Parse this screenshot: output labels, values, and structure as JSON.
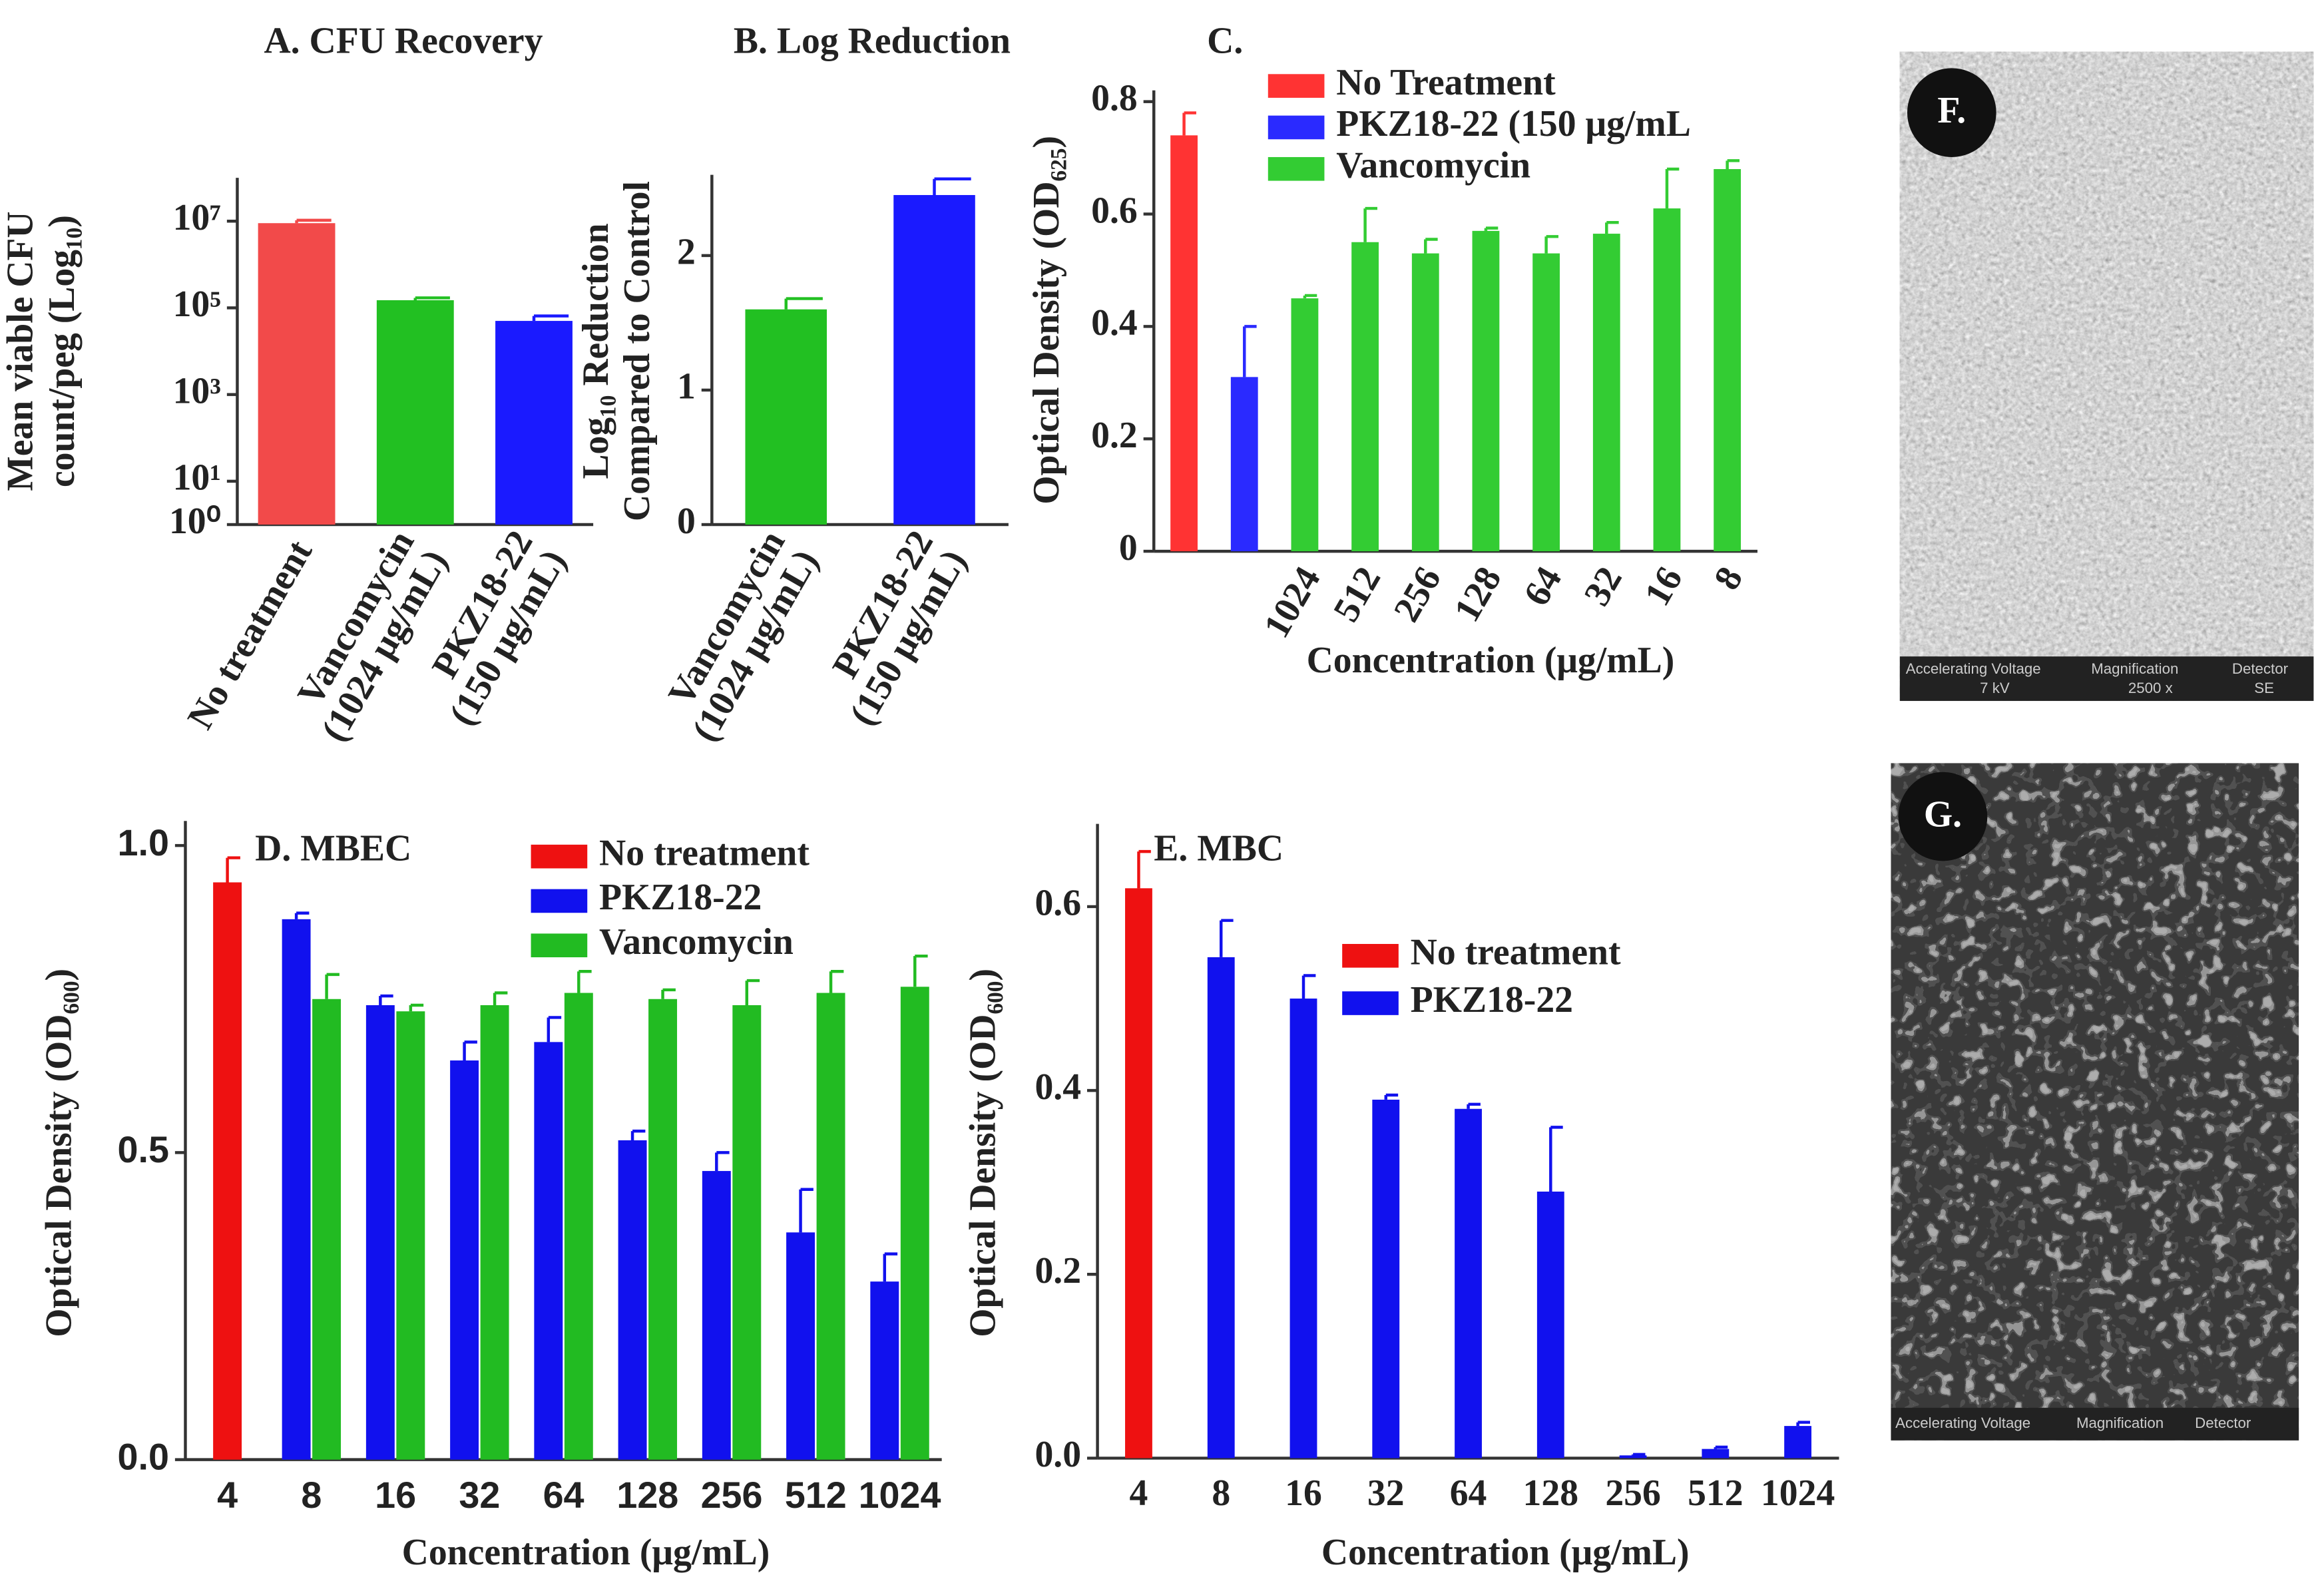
{
  "chart_data": [
    {
      "type": "bar",
      "title": "A. CFU Recovery",
      "ylabel": [
        "Mean viable CFU",
        "count/peg (Log₁₀)"
      ],
      "categories": [
        [
          "No treatment"
        ],
        [
          "Vancomycin",
          "(1024 μg/mL)"
        ],
        [
          "PKZ18-22",
          "(150 μg/mL)"
        ]
      ],
      "values": [
        9000000,
        150000,
        50000
      ],
      "errors": [
        1500000,
        20000,
        15000
      ],
      "colors": [
        "#f24a4a",
        "#22c022",
        "#1a1aff"
      ],
      "log_scale": true,
      "ylim": [
        1,
        100000000
      ],
      "yticks": [
        {
          "value": 1,
          "label": "10⁰"
        },
        {
          "value": 10,
          "label": "10¹"
        },
        {
          "value": 1000,
          "label": "10³"
        },
        {
          "value": 100000,
          "label": "10⁵"
        },
        {
          "value": 10000000,
          "label": "10⁷"
        }
      ]
    },
    {
      "type": "bar",
      "title": "B. Log Reduction",
      "ylabel": [
        "Log₁₀ Reduction",
        "Compared to Control"
      ],
      "categories": [
        [
          "Vancomycin",
          "(1024 μg/mL)"
        ],
        [
          "PKZ18-22",
          "(150 μg/mL)"
        ]
      ],
      "values": [
        1.6,
        2.45
      ],
      "errors": [
        0.08,
        0.12
      ],
      "colors": [
        "#22c022",
        "#1a1aff"
      ],
      "ylim": [
        0,
        2.6
      ],
      "yticks": [
        0,
        1,
        2
      ]
    },
    {
      "type": "bar",
      "title": "C.",
      "ylabel": [
        "Optical Density (OD₆₂₅)"
      ],
      "xlabel": "Concentration (μg/mL)",
      "categories": [
        null,
        null,
        "1024",
        "512",
        "256",
        "128",
        "64",
        "32",
        "16",
        "8"
      ],
      "series": [
        {
          "name": "No Treatment",
          "color": "#ff3333",
          "values": [
            0.74,
            null,
            null,
            null,
            null,
            null,
            null,
            null,
            null,
            null
          ],
          "errors": [
            0.04,
            null,
            null,
            null,
            null,
            null,
            null,
            null,
            null,
            null
          ]
        },
        {
          "name": "PKZ18-22 (150 μg/mL",
          "color": "#2a2aff",
          "values": [
            null,
            0.31,
            null,
            null,
            null,
            null,
            null,
            null,
            null,
            null
          ],
          "errors": [
            null,
            0.09,
            null,
            null,
            null,
            null,
            null,
            null,
            null,
            null
          ]
        },
        {
          "name": "Vancomycin",
          "color": "#33cc33",
          "values": [
            null,
            null,
            0.45,
            0.55,
            0.53,
            0.57,
            0.53,
            0.565,
            0.61,
            0.68
          ],
          "errors": [
            null,
            null,
            0.005,
            0.06,
            0.025,
            0.005,
            0.03,
            0.02,
            0.07,
            0.015
          ]
        }
      ],
      "ylim": [
        0,
        0.82
      ],
      "yticks": [
        0,
        0.2,
        0.4,
        0.6,
        0.8
      ]
    },
    {
      "type": "bar",
      "title": "D. MBEC",
      "ylabel": [
        "Optical Density (OD₆₀₀)"
      ],
      "xlabel": "Concentration (μg/mL)",
      "categories": [
        "4",
        "8",
        "16",
        "32",
        "64",
        "128",
        "256",
        "512",
        "1024"
      ],
      "series": [
        {
          "name": "No treatment",
          "color": "#ee1111",
          "values": [
            0.94,
            null,
            null,
            null,
            null,
            null,
            null,
            null,
            null
          ],
          "errors": [
            0.04,
            null,
            null,
            null,
            null,
            null,
            null,
            null,
            null
          ]
        },
        {
          "name": "PKZ18-22",
          "color": "#1111ee",
          "values": [
            null,
            0.88,
            0.74,
            0.65,
            0.68,
            0.52,
            0.47,
            0.37,
            0.29
          ],
          "errors": [
            null,
            0.01,
            0.015,
            0.03,
            0.04,
            0.015,
            0.03,
            0.07,
            0.045
          ]
        },
        {
          "name": "Vancomycin",
          "color": "#22bb22",
          "values": [
            null,
            0.75,
            0.73,
            0.74,
            0.76,
            0.75,
            0.74,
            0.76,
            0.77
          ],
          "errors": [
            null,
            0.04,
            0.01,
            0.02,
            0.035,
            0.015,
            0.04,
            0.035,
            0.05
          ]
        }
      ],
      "ylim": [
        0,
        1.04
      ],
      "yticks": [
        {
          "value": 0,
          "label": "0.0"
        },
        0.5,
        {
          "value": 1,
          "label": "1.0"
        }
      ]
    },
    {
      "type": "bar",
      "title": "E. MBC",
      "ylabel": [
        "Optical Density (OD₆₀₀)"
      ],
      "xlabel": "Concentration (μg/mL)",
      "categories": [
        "4",
        "8",
        "16",
        "32",
        "64",
        "128",
        "256",
        "512",
        "1024"
      ],
      "series": [
        {
          "name": "No treatment",
          "color": "#ee1111",
          "values": [
            0.62,
            null,
            null,
            null,
            null,
            null,
            null,
            null,
            null
          ],
          "errors": [
            0.04,
            null,
            null,
            null,
            null,
            null,
            null,
            null,
            null
          ]
        },
        {
          "name": "PKZ18-22",
          "color": "#1111ee",
          "values": [
            null,
            0.545,
            0.5,
            0.39,
            0.38,
            0.29,
            0.003,
            0.01,
            0.035
          ],
          "errors": [
            null,
            0.04,
            0.025,
            0.005,
            0.005,
            0.07,
            0.001,
            0.002,
            0.004
          ]
        }
      ],
      "ylim": [
        0,
        0.69
      ],
      "yticks": [
        {
          "value": 0,
          "label": "0.0"
        },
        0.2,
        0.4,
        0.6
      ]
    }
  ],
  "images": [
    {
      "label": "F.",
      "info": [
        "Accelerating Voltage",
        "Magnification",
        "Detector",
        "7 kV",
        "2500 x",
        "SE"
      ]
    },
    {
      "label": "G.",
      "info": [
        "Accelerating Voltage",
        "Magnification",
        "Detector"
      ]
    }
  ]
}
